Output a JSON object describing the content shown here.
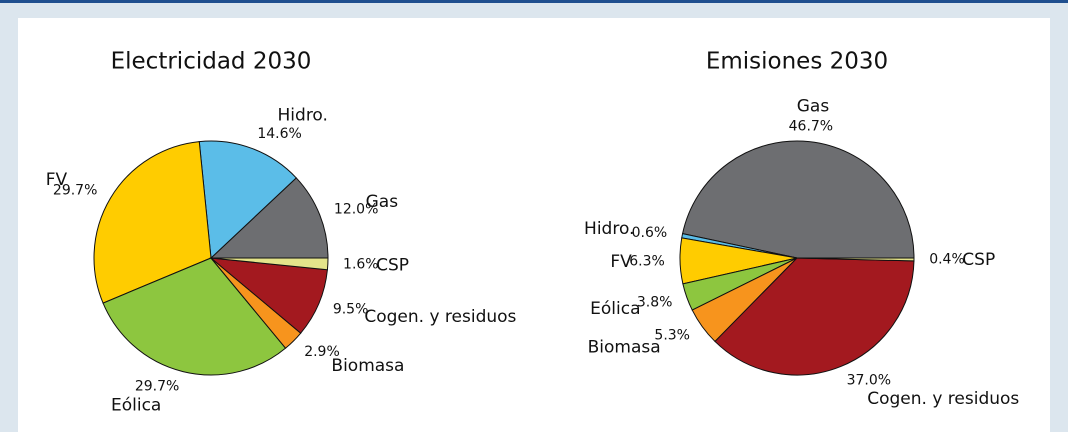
{
  "chart_data": [
    {
      "type": "pie",
      "title": "Electricidad 2030",
      "categories": [
        "Gas",
        "Hidro.",
        "FV",
        "Eólica",
        "Biomasa",
        "Cogen. y residuos",
        "CSP"
      ],
      "values": [
        12.0,
        14.6,
        29.7,
        29.7,
        2.9,
        9.5,
        1.6
      ],
      "value_labels": [
        "12.0%",
        "14.6%",
        "29.7%",
        "29.7%",
        "2.9%",
        "9.5%",
        "1.6%"
      ],
      "colors": [
        "#6d6e71",
        "#5bbde8",
        "#ffcc00",
        "#8dc63f",
        "#f7941d",
        "#a3191f",
        "#e4e48a"
      ]
    },
    {
      "type": "pie",
      "title": "Emisiones 2030",
      "categories": [
        "Gas",
        "Hidro.",
        "FV",
        "Eólica",
        "Biomasa",
        "Cogen. y residuos",
        "CSP"
      ],
      "values": [
        46.7,
        0.6,
        6.3,
        3.8,
        5.3,
        37.0,
        0.4
      ],
      "value_labels": [
        "46.7%",
        "0.6%",
        "6.3%",
        "3.8%",
        "5.3%",
        "37.0%",
        "0.4%"
      ],
      "colors": [
        "#6d6e71",
        "#5bbde8",
        "#ffcc00",
        "#8dc63f",
        "#f7941d",
        "#a3191f",
        "#e4e48a"
      ]
    }
  ]
}
